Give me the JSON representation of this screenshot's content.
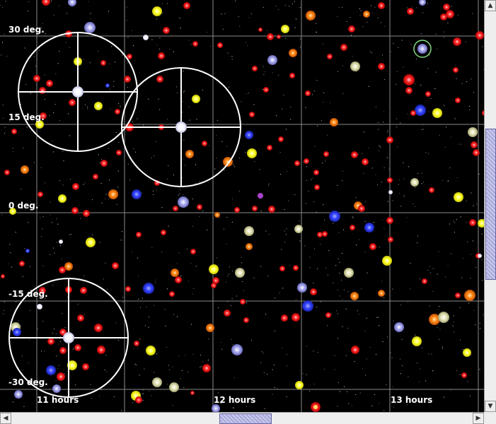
{
  "axis_labels": {
    "dec_30": "30 deg.",
    "dec_15": "15 deg.",
    "dec_0": "0 deg.",
    "dec_m15": "-15 deg.",
    "dec_m30": "-30 deg.",
    "ra_11": "11 hours",
    "ra_12": "12 hours",
    "ra_13": "13 hours"
  },
  "colors": {
    "sky": "#000000",
    "grid": "#8a8a8a",
    "reticle": "#ffffff",
    "selection": "#7fd87f",
    "star_red": "#ff2222",
    "star_orange": "#ff8c1a",
    "star_yellow": "#ffff33",
    "star_white": "#f0f0ff",
    "star_blue": "#3344ff",
    "star_bluewhite": "#9999ee",
    "star_tan": "#ddddaa"
  },
  "scrollbars": {
    "up_icon": "▲",
    "down_icon": "▼",
    "left_icon": "◀",
    "right_icon": "▶"
  }
}
